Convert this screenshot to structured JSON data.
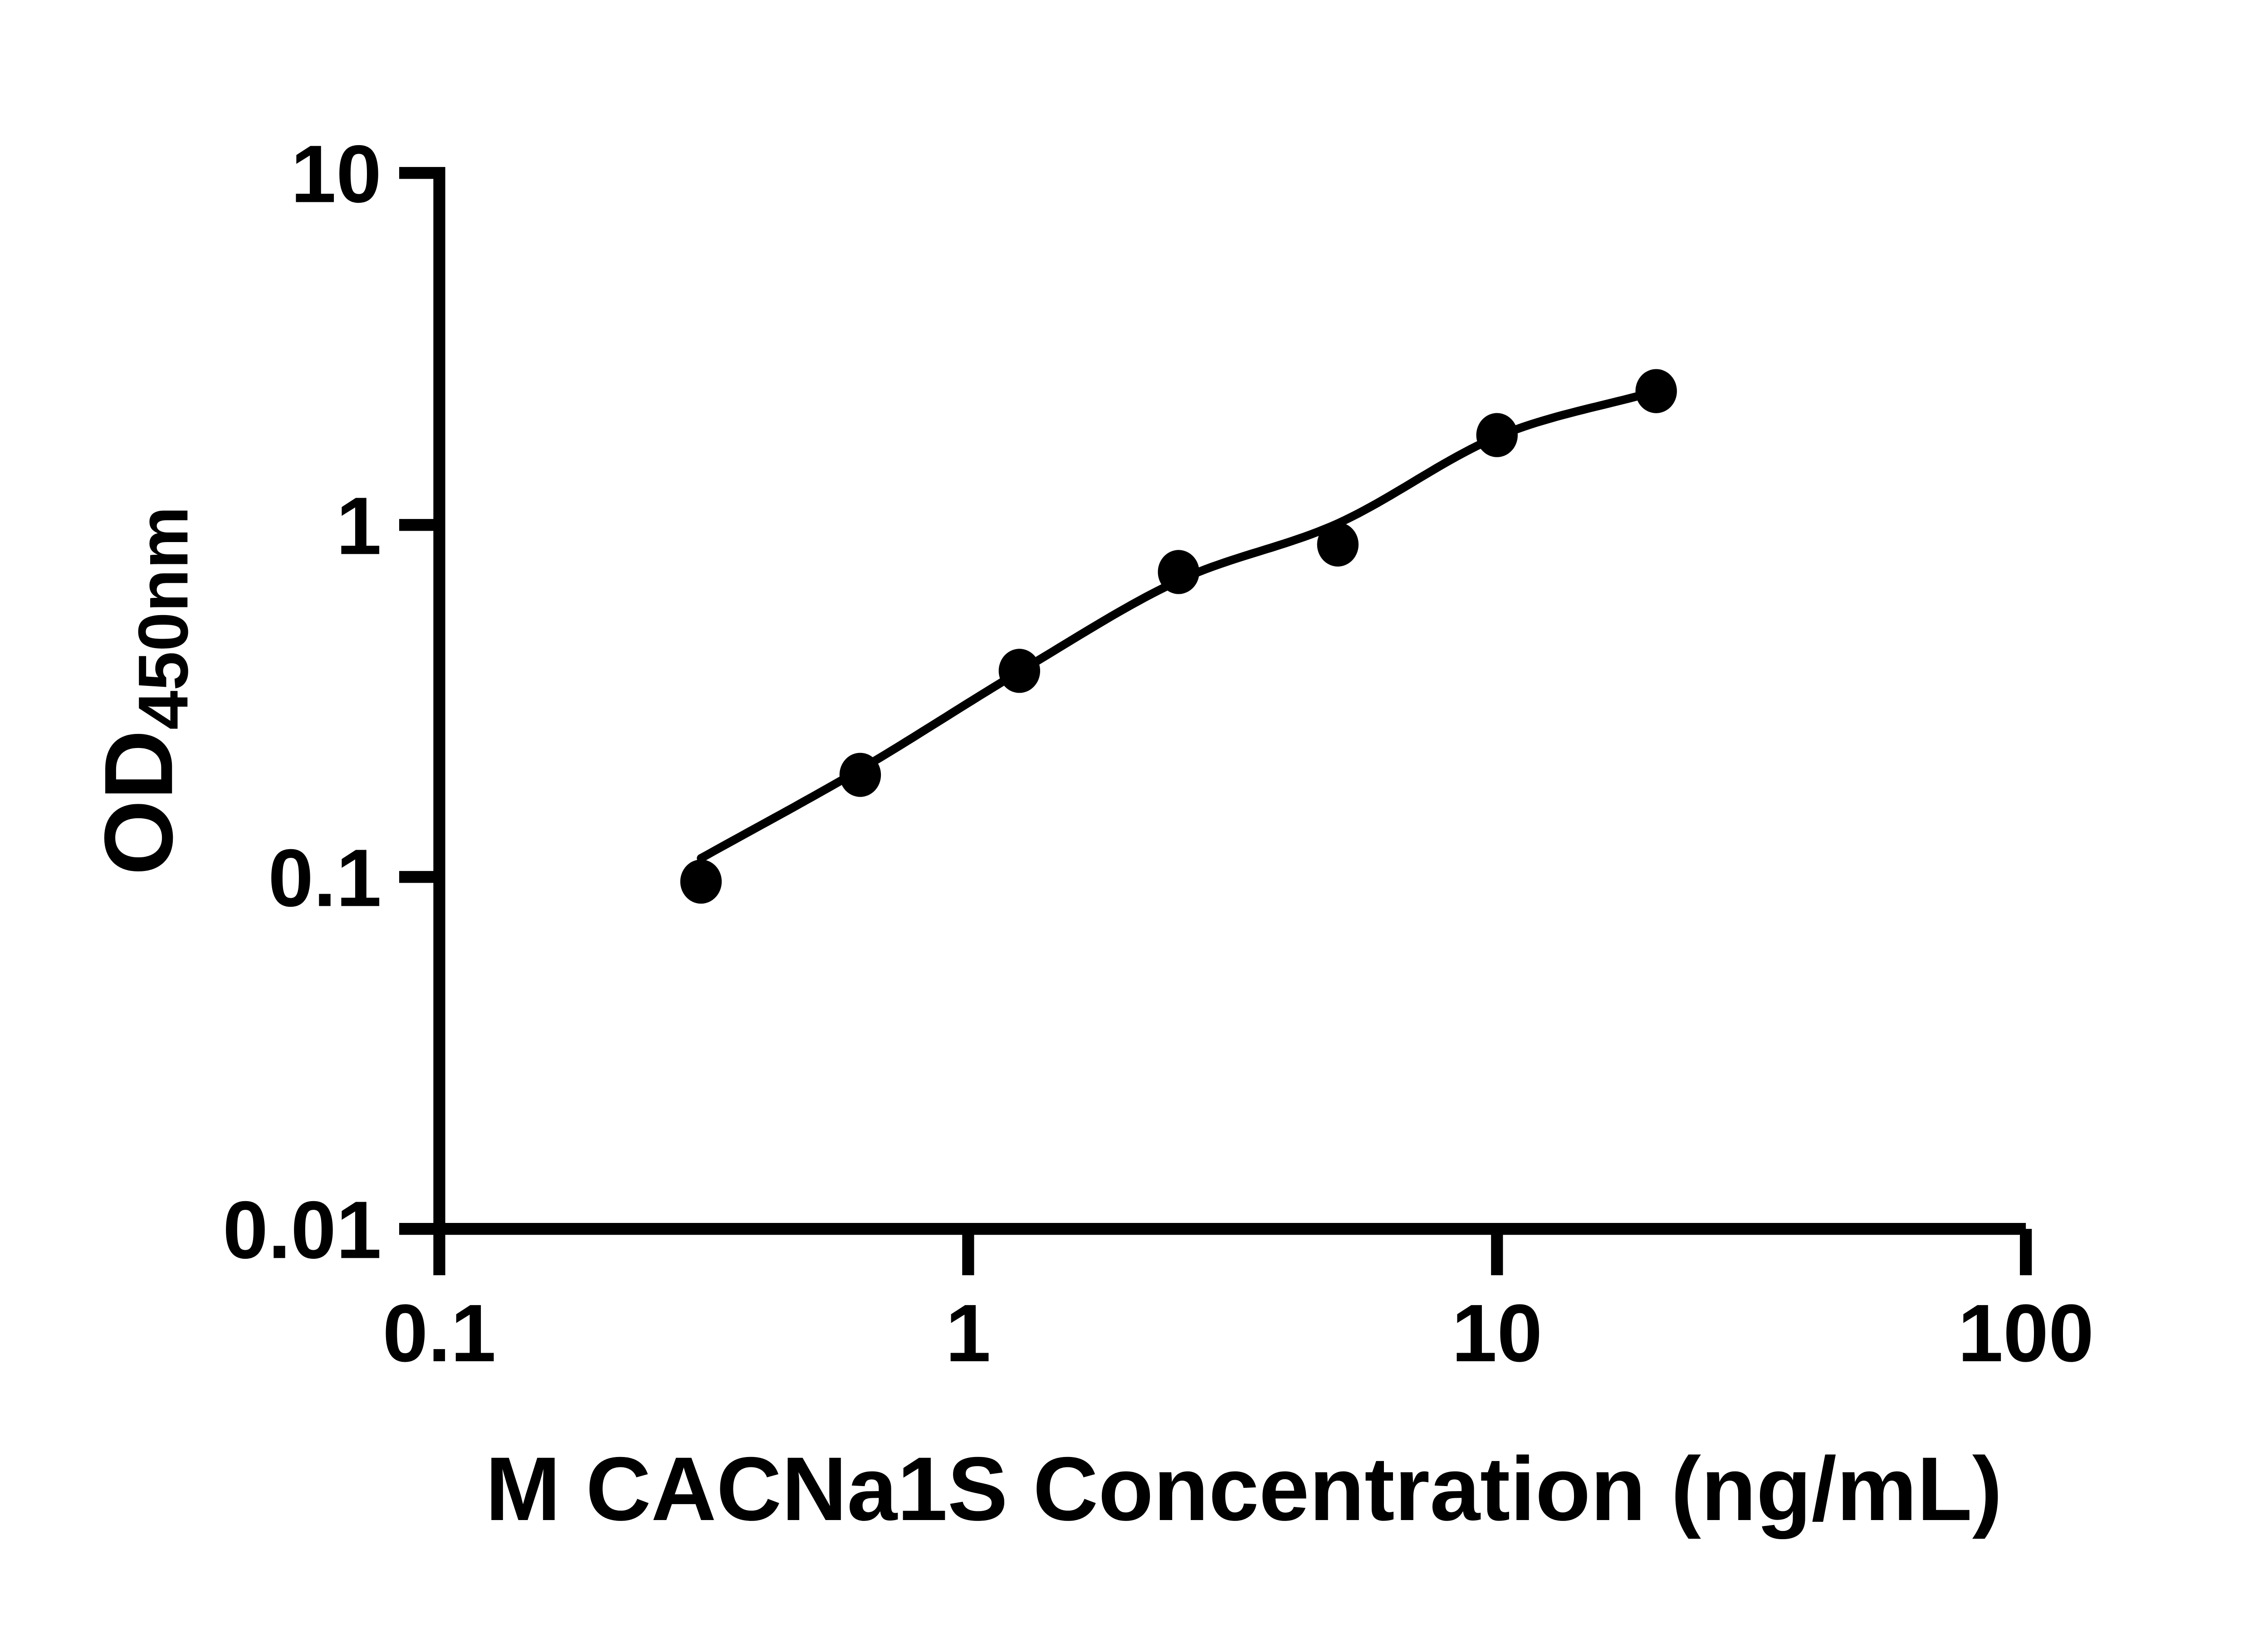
{
  "chart_data": {
    "type": "scatter",
    "title": "",
    "xlabel": "M CACNa1S Concentration (ng/mL)",
    "ylabel_main": "OD",
    "ylabel_subscript": "450nm",
    "x_scale": "log",
    "y_scale": "log",
    "xlim": [
      0.1,
      100
    ],
    "ylim": [
      0.01,
      10
    ],
    "x_tick_values": [
      0.1,
      1,
      10,
      100
    ],
    "x_tick_labels": [
      "0.1",
      "1",
      "10",
      "100"
    ],
    "y_tick_values": [
      0.01,
      0.1,
      1,
      10
    ],
    "y_tick_labels": [
      "0.01",
      "0.1",
      "1",
      "10"
    ],
    "grid": false,
    "legend_position": "none",
    "ink_color": "#000000",
    "background_color": "#ffffff",
    "series": [
      {
        "name": "standard curve data points",
        "marker": "filled-circle",
        "color": "#000000",
        "x": [
          0.3125,
          0.625,
          1.25,
          2.5,
          5,
          10,
          20
        ],
        "y": [
          0.097,
          0.195,
          0.385,
          0.735,
          0.88,
          1.8,
          2.4
        ]
      }
    ],
    "fit_curve": {
      "name": "fitted standard curve line",
      "color": "#000000",
      "x": [
        0.3125,
        0.625,
        1.25,
        2.5,
        5,
        10,
        20
      ],
      "y": [
        0.113,
        0.202,
        0.383,
        0.695,
        1.01,
        1.78,
        2.4
      ]
    }
  }
}
